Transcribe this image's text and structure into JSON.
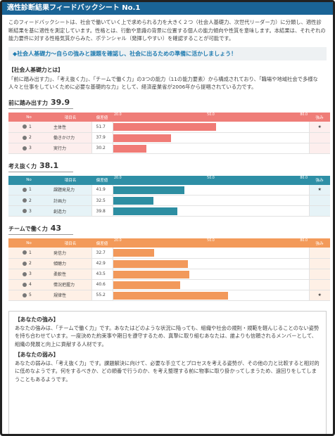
{
  "header": {
    "title": "適性診断結果フィードバックシート No.1"
  },
  "intro": "このフィードバックシートは、社会で働いていく上で求められる力を大きく２つ（社会人基礎力、次世代リーダー力）に分類し、適性診断結果を基に適性を測定しています。性格とは、行動や意識の背景に位置する個人の能力傾向や性質を意味します。本結果は、それぞれの能力要件に対する性格気質からみた、ポテンシャル（発揮しやすい）を確認することが可能です。",
  "banner": "◆社会人基礎力〜自らの強みと課題を確認し、社会に出るための準備に活かしましょう！",
  "about": {
    "title": "【社会人基礎力とは】",
    "body": "「前に踏み出す力」、「考え抜く力」、「チームで働く力」の3つの能力（11の能力要素）から構成されており、「職場や地域社会で多様な人々と仕事をしていくために必要な基礎的な力」として、経済産業省が2006年から提唱されている力です。"
  },
  "table_headers": {
    "no": "No",
    "item": "項目名",
    "deviation": "偏差値",
    "strength": "強み"
  },
  "chart_data": {
    "type": "bar",
    "xlim": [
      20,
      80
    ],
    "ticks": [
      "20.0",
      "50.0",
      "80.0"
    ],
    "groups": [
      {
        "name": "前に踏み出す力",
        "score": "39.9",
        "theme": "red",
        "rows": [
          {
            "no": "1",
            "item": "主体性",
            "value": 51.7,
            "strength": "★"
          },
          {
            "no": "2",
            "item": "働きかけ力",
            "value": 37.9,
            "strength": ""
          },
          {
            "no": "3",
            "item": "実行力",
            "value": 30.2,
            "strength": ""
          }
        ]
      },
      {
        "name": "考え抜く力",
        "score": "38.1",
        "theme": "blue",
        "rows": [
          {
            "no": "1",
            "item": "課題発見力",
            "value": 41.9,
            "strength": "★"
          },
          {
            "no": "2",
            "item": "計画力",
            "value": 32.5,
            "strength": ""
          },
          {
            "no": "3",
            "item": "創造力",
            "value": 39.8,
            "strength": ""
          }
        ]
      },
      {
        "name": "チームで働く力",
        "score": "43",
        "theme": "orange",
        "rows": [
          {
            "no": "1",
            "item": "発信力",
            "value": 32.7,
            "strength": ""
          },
          {
            "no": "2",
            "item": "傾聴力",
            "value": 42.9,
            "strength": ""
          },
          {
            "no": "3",
            "item": "柔軟性",
            "value": 43.5,
            "strength": ""
          },
          {
            "no": "4",
            "item": "情況把握力",
            "value": 40.6,
            "strength": ""
          },
          {
            "no": "5",
            "item": "規律性",
            "value": 55.2,
            "strength": "★"
          }
        ]
      }
    ]
  },
  "strengths": {
    "title": "【あなたの強み】",
    "body": "あなたの強みは、「チームで働く力」です。あなたはどのような状況に陥っても、組織や社会の規則・規範を軽んじることのない姿勢を持ち合わせています。一度決めた約束事や期日を遵守するため、真摯に取り組むあなたは、誰よりも信頼されるメンバーとして、組織の発展と向上に貢献する人材です。"
  },
  "weaknesses": {
    "title": "【あなたの弱み】",
    "body": "あなたの弱みは、「考え抜く力」です。課題解決に向けて、必要な手立てとプロセスを考える姿勢が、その他の力と比較すると相対的に低めなようです。何をするべきか、どの順番で行うのか、を考え整理する前に物事に取り掛かってしまうため、遠回りをしてしまうこともあるようです。"
  }
}
